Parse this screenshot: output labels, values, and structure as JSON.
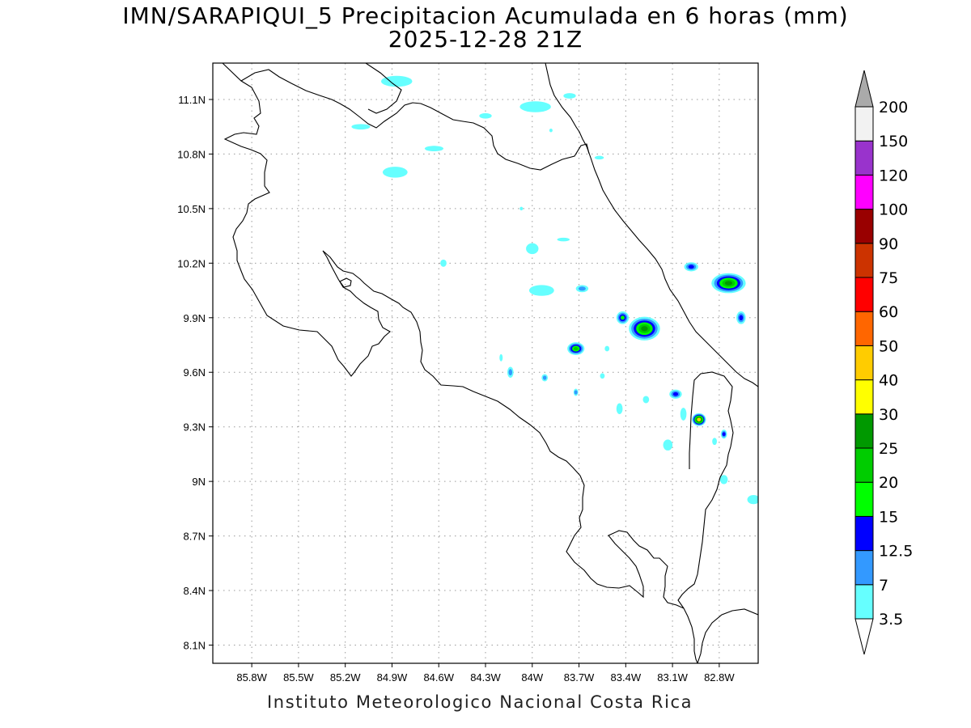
{
  "title": "IMN/SARAPIQUI_5 Precipitacion Acumulada en 6 horas (mm)",
  "subtitle": "2025-12-28 21Z",
  "footer": "Instituto Meteorologico Nacional Costa Rica",
  "map": {
    "x_axis": {
      "range": [
        -86.05,
        -82.55
      ],
      "ticks": [
        {
          "value": -85.8,
          "label": "85.8W"
        },
        {
          "value": -85.5,
          "label": "85.5W"
        },
        {
          "value": -85.2,
          "label": "85.2W"
        },
        {
          "value": -84.9,
          "label": "84.9W"
        },
        {
          "value": -84.6,
          "label": "84.6W"
        },
        {
          "value": -84.3,
          "label": "84.3W"
        },
        {
          "value": -84.0,
          "label": "84W"
        },
        {
          "value": -83.7,
          "label": "83.7W"
        },
        {
          "value": -83.4,
          "label": "83.4W"
        },
        {
          "value": -83.1,
          "label": "83.1W"
        },
        {
          "value": -82.8,
          "label": "82.8W"
        }
      ]
    },
    "y_axis": {
      "range": [
        8.0,
        11.3
      ],
      "ticks": [
        {
          "value": 8.1,
          "label": "8.1N"
        },
        {
          "value": 8.4,
          "label": "8.4N"
        },
        {
          "value": 8.7,
          "label": "8.7N"
        },
        {
          "value": 9.0,
          "label": "9N"
        },
        {
          "value": 9.3,
          "label": "9.3N"
        },
        {
          "value": 9.6,
          "label": "9.6N"
        },
        {
          "value": 9.9,
          "label": "9.9N"
        },
        {
          "value": 10.2,
          "label": "10.2N"
        },
        {
          "value": 10.5,
          "label": "10.5N"
        },
        {
          "value": 10.8,
          "label": "10.8N"
        },
        {
          "value": 11.1,
          "label": "11.1N"
        }
      ]
    },
    "grid": true,
    "precip_cells": [
      {
        "lon": -84.87,
        "lat": 11.2,
        "rx": 0.1,
        "ry": 0.03,
        "v": 3.5
      },
      {
        "lon": -83.98,
        "lat": 11.06,
        "rx": 0.1,
        "ry": 0.03,
        "v": 3.5
      },
      {
        "lon": -84.88,
        "lat": 10.7,
        "rx": 0.08,
        "ry": 0.03,
        "v": 3.5
      },
      {
        "lon": -85.1,
        "lat": 10.95,
        "rx": 0.06,
        "ry": 0.015,
        "v": 3.5
      },
      {
        "lon": -84.63,
        "lat": 10.83,
        "rx": 0.06,
        "ry": 0.015,
        "v": 3.5
      },
      {
        "lon": -83.76,
        "lat": 11.12,
        "rx": 0.04,
        "ry": 0.015,
        "v": 3.5
      },
      {
        "lon": -84.3,
        "lat": 11.01,
        "rx": 0.04,
        "ry": 0.015,
        "v": 3.5
      },
      {
        "lon": -84.0,
        "lat": 10.28,
        "rx": 0.04,
        "ry": 0.03,
        "v": 3.5
      },
      {
        "lon": -83.94,
        "lat": 10.05,
        "rx": 0.08,
        "ry": 0.03,
        "v": 3.5
      },
      {
        "lon": -84.57,
        "lat": 10.2,
        "rx": 0.02,
        "ry": 0.02,
        "v": 3.5
      },
      {
        "lon": -83.68,
        "lat": 10.06,
        "rx": 0.04,
        "ry": 0.02,
        "v": 7
      },
      {
        "lon": -83.42,
        "lat": 9.9,
        "rx": 0.04,
        "ry": 0.035,
        "v": 15
      },
      {
        "lon": -83.28,
        "lat": 9.84,
        "rx": 0.1,
        "ry": 0.065,
        "v": 25
      },
      {
        "lon": -83.72,
        "lat": 9.73,
        "rx": 0.055,
        "ry": 0.035,
        "v": 20
      },
      {
        "lon": -82.74,
        "lat": 10.09,
        "rx": 0.11,
        "ry": 0.055,
        "v": 25
      },
      {
        "lon": -82.98,
        "lat": 10.18,
        "rx": 0.045,
        "ry": 0.025,
        "v": 12.5
      },
      {
        "lon": -82.66,
        "lat": 9.9,
        "rx": 0.03,
        "ry": 0.035,
        "v": 12.5
      },
      {
        "lon": -82.93,
        "lat": 9.34,
        "rx": 0.045,
        "ry": 0.035,
        "v": 40
      },
      {
        "lon": -83.08,
        "lat": 9.48,
        "rx": 0.04,
        "ry": 0.025,
        "v": 12.5
      },
      {
        "lon": -82.77,
        "lat": 9.26,
        "rx": 0.02,
        "ry": 0.025,
        "v": 12.5
      },
      {
        "lon": -84.14,
        "lat": 9.6,
        "rx": 0.02,
        "ry": 0.03,
        "v": 7
      },
      {
        "lon": -83.92,
        "lat": 9.57,
        "rx": 0.02,
        "ry": 0.02,
        "v": 7
      },
      {
        "lon": -83.72,
        "lat": 9.49,
        "rx": 0.015,
        "ry": 0.02,
        "v": 7
      },
      {
        "lon": -83.13,
        "lat": 9.2,
        "rx": 0.03,
        "ry": 0.03,
        "v": 3.5
      },
      {
        "lon": -83.03,
        "lat": 9.37,
        "rx": 0.02,
        "ry": 0.035,
        "v": 3.5
      },
      {
        "lon": -82.77,
        "lat": 9.01,
        "rx": 0.025,
        "ry": 0.025,
        "v": 3.5
      },
      {
        "lon": -82.58,
        "lat": 8.9,
        "rx": 0.04,
        "ry": 0.025,
        "v": 3.5
      },
      {
        "lon": -83.44,
        "lat": 9.4,
        "rx": 0.02,
        "ry": 0.03,
        "v": 3.5
      },
      {
        "lon": -83.52,
        "lat": 9.73,
        "rx": 0.015,
        "ry": 0.015,
        "v": 3.5
      },
      {
        "lon": -83.27,
        "lat": 9.45,
        "rx": 0.02,
        "ry": 0.02,
        "v": 3.5
      },
      {
        "lon": -82.83,
        "lat": 9.22,
        "rx": 0.015,
        "ry": 0.02,
        "v": 3.5
      },
      {
        "lon": -83.8,
        "lat": 10.33,
        "rx": 0.04,
        "ry": 0.01,
        "v": 3.5
      },
      {
        "lon": -83.57,
        "lat": 10.78,
        "rx": 0.03,
        "ry": 0.01,
        "v": 3.5
      },
      {
        "lon": -84.07,
        "lat": 10.5,
        "rx": 0.01,
        "ry": 0.01,
        "v": 3.5
      },
      {
        "lon": -84.2,
        "lat": 9.68,
        "rx": 0.01,
        "ry": 0.02,
        "v": 3.5
      },
      {
        "lon": -83.55,
        "lat": 9.58,
        "rx": 0.015,
        "ry": 0.015,
        "v": 3.5
      },
      {
        "lon": -83.88,
        "lat": 10.93,
        "rx": 0.01,
        "ry": 0.01,
        "v": 3.5
      }
    ]
  },
  "colorbar": {
    "levels": [
      "3.5",
      "7",
      "12.5",
      "15",
      "20",
      "25",
      "30",
      "40",
      "50",
      "60",
      "75",
      "90",
      "100",
      "120",
      "150",
      "200"
    ],
    "colors": [
      "#66ffff",
      "#3399ff",
      "#0000ff",
      "#00ff00",
      "#00cc00",
      "#009900",
      "#ffff00",
      "#ffcc00",
      "#ff6600",
      "#ff0000",
      "#cc3300",
      "#990000",
      "#ff00ff",
      "#9933cc",
      "#f2f2f2",
      "#aaaaaa"
    ],
    "low_color": "#ffffff"
  }
}
